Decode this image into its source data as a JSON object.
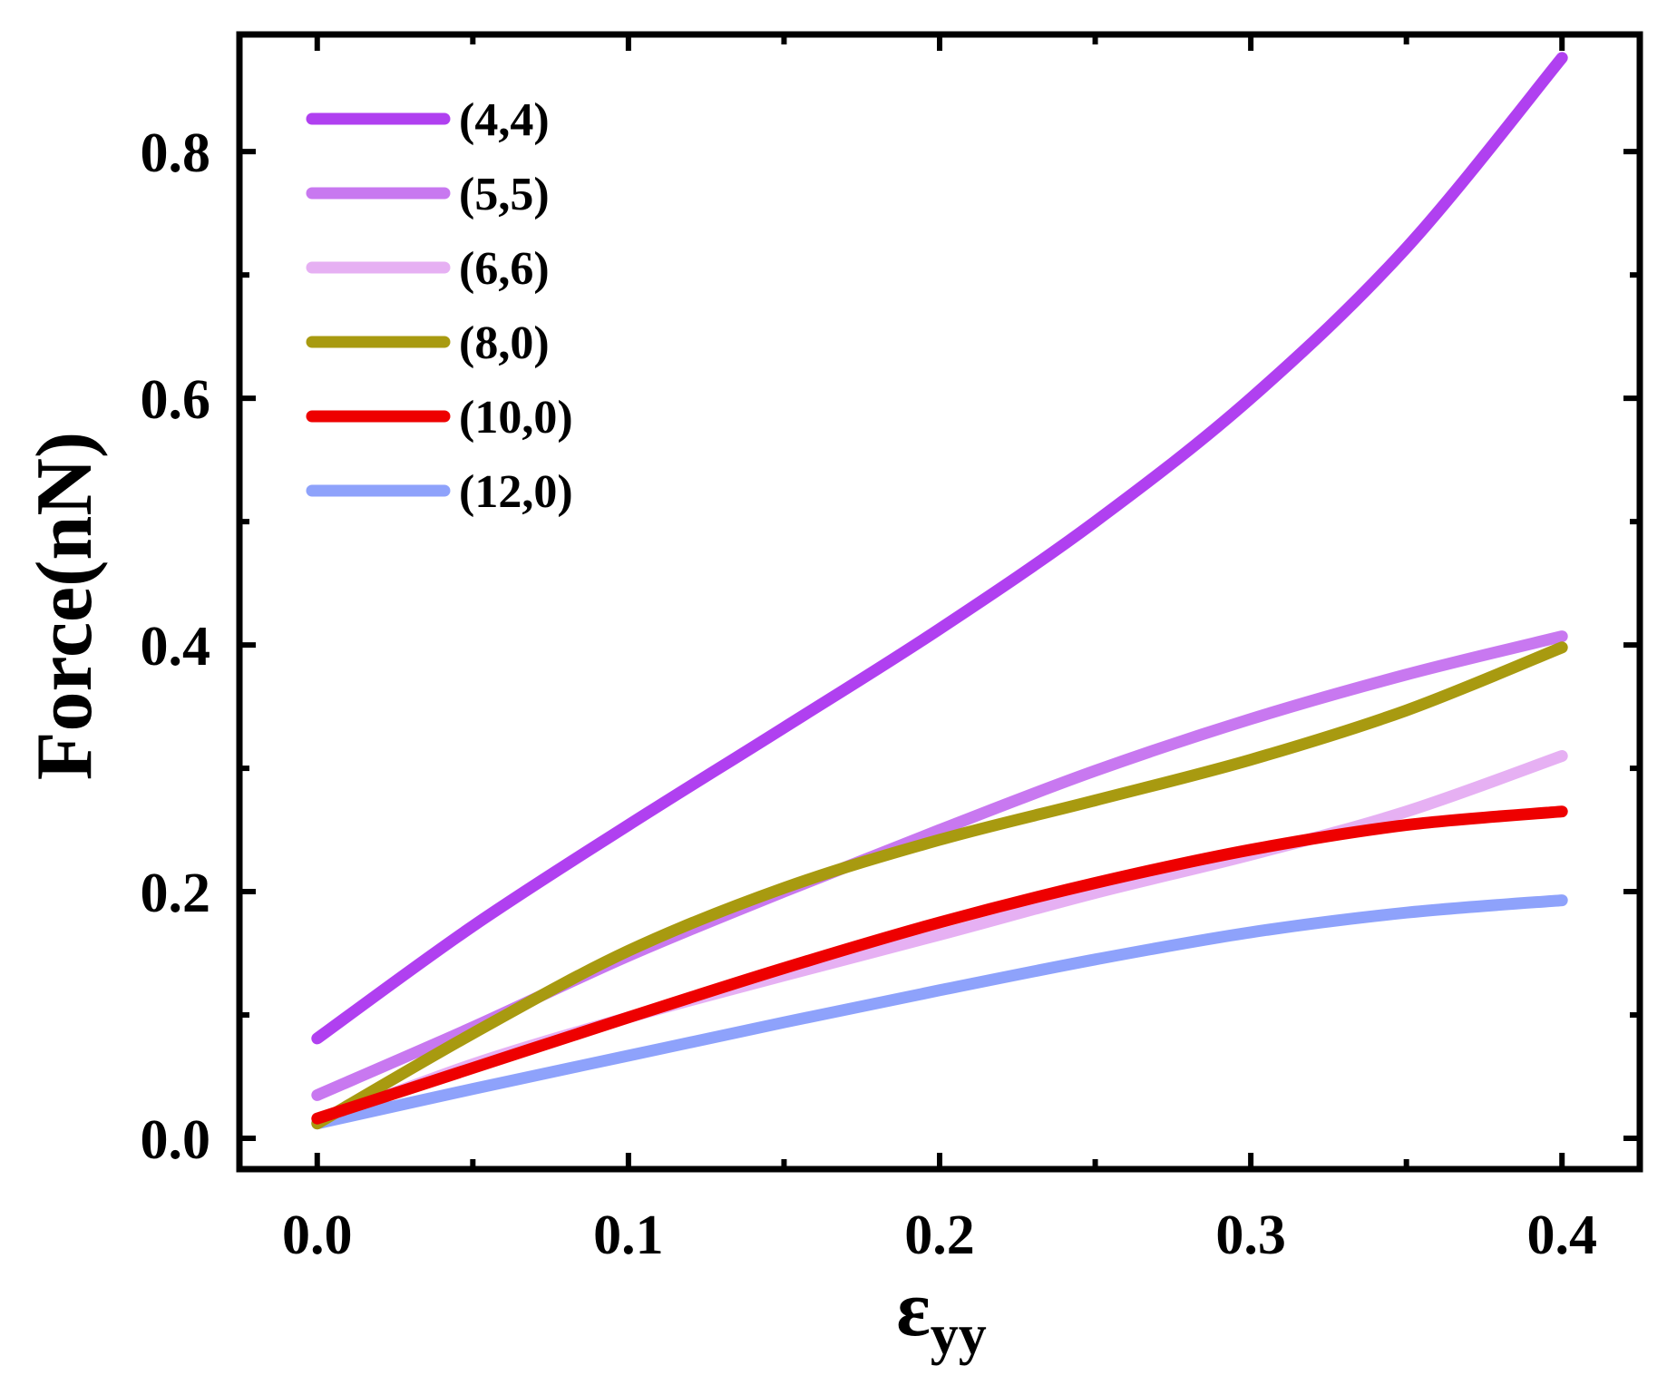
{
  "chart_data": {
    "type": "line",
    "title": "",
    "xlabel": "ε",
    "xlabel_sub": "yy",
    "ylabel": "Force(nN)",
    "xlim": [
      -0.025,
      0.425
    ],
    "ylim": [
      -0.025,
      0.895
    ],
    "xticks": [
      "0.0",
      "0.1",
      "0.2",
      "0.3",
      "0.4"
    ],
    "yticks": [
      "0.0",
      "0.2",
      "0.4",
      "0.6",
      "0.8"
    ],
    "grid": false,
    "legend_position": "top-left",
    "x": [
      0.0,
      0.05,
      0.1,
      0.15,
      0.2,
      0.25,
      0.3,
      0.35,
      0.4
    ],
    "series": [
      {
        "name": "(4,4)",
        "color": "#b040f0",
        "values": [
          0.081,
          0.172,
          0.254,
          0.333,
          0.413,
          0.5,
          0.6,
          0.722,
          0.876
        ]
      },
      {
        "name": "(5,5)",
        "color": "#c878f0",
        "values": [
          0.035,
          0.09,
          0.148,
          0.2,
          0.25,
          0.298,
          0.34,
          0.376,
          0.407
        ]
      },
      {
        "name": "(6,6)",
        "color": "#e6b0f3",
        "values": [
          0.013,
          0.06,
          0.098,
          0.132,
          0.165,
          0.199,
          0.23,
          0.265,
          0.31
        ]
      },
      {
        "name": "(8,0)",
        "color": "#a89a10",
        "values": [
          0.012,
          0.085,
          0.152,
          0.203,
          0.242,
          0.274,
          0.307,
          0.347,
          0.398
        ]
      },
      {
        "name": "(10,0)",
        "color": "#ee0000",
        "values": [
          0.016,
          0.057,
          0.098,
          0.138,
          0.175,
          0.207,
          0.234,
          0.254,
          0.265
        ]
      },
      {
        "name": "(12,0)",
        "color": "#8ea2fb",
        "values": [
          0.012,
          0.04,
          0.067,
          0.094,
          0.12,
          0.145,
          0.167,
          0.183,
          0.193
        ]
      }
    ]
  }
}
